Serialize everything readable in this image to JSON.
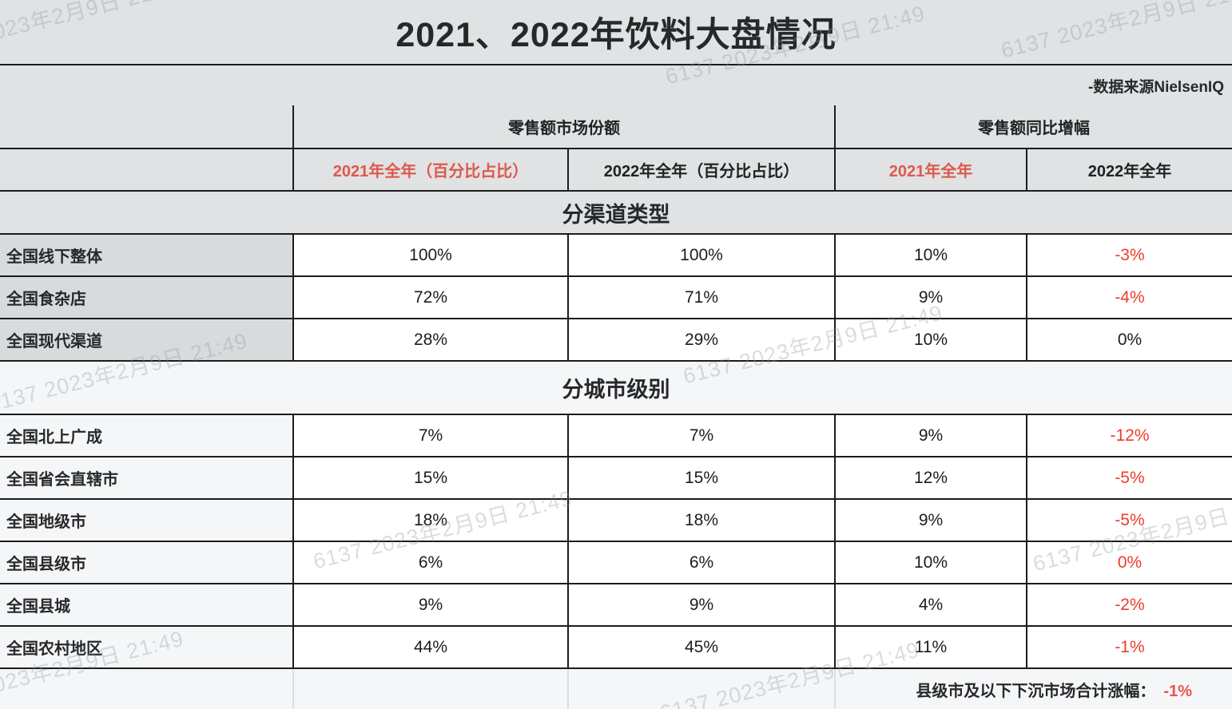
{
  "title": "2021、2022年饮料大盘情况",
  "source": "-数据来源NielsenIQ",
  "watermark": {
    "text": "6137 2023年2月9日 21:49"
  },
  "colors": {
    "header_red": "#df584b",
    "value_red": "#ee3b2a",
    "band_gray": "#e0e2e3",
    "label_gray": "#d8dbdc",
    "light_band": "#f5f6f7",
    "border_black": "#1a1c1e"
  },
  "table": {
    "group_headers": [
      "零售额市场份额",
      "零售额同比增幅"
    ],
    "col_headers": [
      "2021年全年（百分比占比）",
      "2022年全年（百分比占比）",
      "2021年全年",
      "2022年全年"
    ],
    "sections": [
      {
        "title": "分渠道类型",
        "rows": [
          {
            "label": "全国线下整体",
            "share_2021": "100%",
            "share_2022": "100%",
            "growth_2021": "10%",
            "growth_2022": "-3%"
          },
          {
            "label": "全国食杂店",
            "share_2021": "72%",
            "share_2022": "71%",
            "growth_2021": "9%",
            "growth_2022": "-4%"
          },
          {
            "label": "全国现代渠道",
            "share_2021": "28%",
            "share_2022": "29%",
            "growth_2021": "10%",
            "growth_2022": "0%"
          }
        ]
      },
      {
        "title": "分城市级别",
        "rows": [
          {
            "label": "全国北上广成",
            "share_2021": "7%",
            "share_2022": "7%",
            "growth_2021": "9%",
            "growth_2022": "-12%"
          },
          {
            "label": "全国省会直辖市",
            "share_2021": "15%",
            "share_2022": "15%",
            "growth_2021": "12%",
            "growth_2022": "-5%"
          },
          {
            "label": "全国地级市",
            "share_2021": "18%",
            "share_2022": "18%",
            "growth_2021": "9%",
            "growth_2022": "-5%"
          },
          {
            "label": "全国县级市",
            "share_2021": "6%",
            "share_2022": "6%",
            "growth_2021": "10%",
            "growth_2022": "0%"
          },
          {
            "label": "全国县城",
            "share_2021": "9%",
            "share_2022": "9%",
            "growth_2021": "4%",
            "growth_2022": "-2%"
          },
          {
            "label": "全国农村地区",
            "share_2021": "44%",
            "share_2022": "45%",
            "growth_2021": "11%",
            "growth_2022": "-1%"
          }
        ]
      }
    ],
    "footnote": {
      "label": "县级市及以下下沉市场合计涨幅：",
      "value": "-1%"
    }
  }
}
